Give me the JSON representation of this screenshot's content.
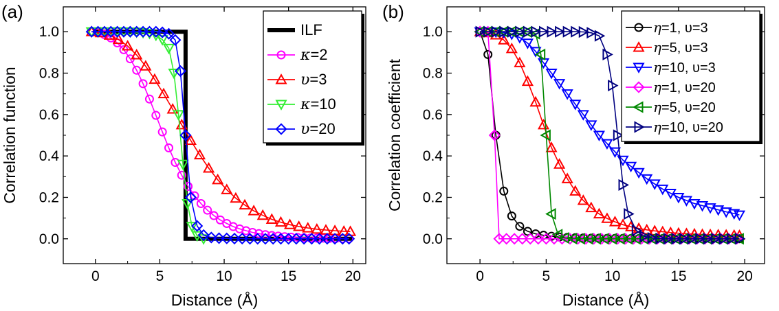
{
  "chart_data": [
    {
      "type": "line",
      "panel_label": "(a)",
      "xlabel": "Distance (Å)",
      "ylabel": "Correlation function",
      "xlim": [
        -2.5,
        21
      ],
      "ylim": [
        -0.12,
        1.12
      ],
      "xticks": [
        0,
        5,
        10,
        15,
        20
      ],
      "yticks": [
        0.0,
        0.2,
        0.4,
        0.6,
        0.8,
        1.0
      ],
      "xtick_labels": [
        "0",
        "5",
        "10",
        "15",
        "20"
      ],
      "ytick_labels": [
        "0.0",
        "0.2",
        "0.4",
        "0.6",
        "0.8",
        "1.0"
      ],
      "legend_position": "top-right",
      "series": [
        {
          "name": "ILF",
          "legend_prefix": "",
          "legend_suffix": "ILF",
          "color": "#000000",
          "marker": "none",
          "x": [
            -0.2,
            7.0,
            7.0,
            20.0
          ],
          "y": [
            1.0,
            1.0,
            0.0,
            0.0
          ]
        },
        {
          "name": "κ=2",
          "legend_prefix": "κ",
          "legend_suffix": "=2",
          "color": "#ff00ff",
          "marker": "circle",
          "x": [
            -0.3,
            0.2,
            0.7,
            1.2,
            1.7,
            2.2,
            2.7,
            3.2,
            3.7,
            4.2,
            4.7,
            5.2,
            5.7,
            6.2,
            6.7,
            7.2,
            7.7,
            8.2,
            8.7,
            9.2,
            9.7,
            10.2,
            10.7,
            11.2,
            11.7,
            12.2,
            12.7,
            13.2,
            13.7,
            14.2,
            14.7,
            15.2,
            15.7,
            16.2,
            16.7,
            17.2,
            17.7,
            18.2,
            18.7,
            19.2,
            19.7
          ],
          "y": [
            1.0,
            0.996,
            0.986,
            0.97,
            0.946,
            0.913,
            0.869,
            0.814,
            0.749,
            0.675,
            0.596,
            0.516,
            0.439,
            0.369,
            0.307,
            0.253,
            0.208,
            0.17,
            0.138,
            0.112,
            0.091,
            0.074,
            0.059,
            0.048,
            0.039,
            0.031,
            0.025,
            0.02,
            0.016,
            0.013,
            0.01,
            0.008,
            0.007,
            0.005,
            0.004,
            0.003,
            0.003,
            0.002,
            0.002,
            0.001,
            0.001
          ]
        },
        {
          "name": "υ=3",
          "legend_prefix": "υ",
          "legend_suffix": "=3",
          "color": "#ff0000",
          "marker": "triangle-up",
          "x": [
            -0.3,
            0.4,
            1.1,
            1.8,
            2.5,
            3.2,
            3.9,
            4.6,
            5.3,
            6.0,
            6.7,
            7.4,
            8.1,
            8.8,
            9.5,
            10.2,
            10.9,
            11.6,
            12.3,
            13.0,
            13.7,
            14.4,
            15.1,
            15.8,
            16.5,
            17.2,
            17.9,
            18.6,
            19.3,
            19.8
          ],
          "y": [
            1.0,
            0.995,
            0.983,
            0.962,
            0.931,
            0.888,
            0.834,
            0.77,
            0.7,
            0.626,
            0.55,
            0.475,
            0.405,
            0.341,
            0.285,
            0.237,
            0.196,
            0.163,
            0.135,
            0.113,
            0.094,
            0.08,
            0.068,
            0.059,
            0.052,
            0.046,
            0.042,
            0.039,
            0.036,
            0.035
          ]
        },
        {
          "name": "κ=10",
          "legend_prefix": "κ",
          "legend_suffix": "=10",
          "color": "#33ee33",
          "marker": "triangle-down",
          "x": [
            -0.3,
            0.2,
            0.7,
            1.2,
            1.7,
            2.2,
            2.7,
            3.2,
            3.7,
            4.2,
            4.7,
            5.2,
            5.7,
            6.1,
            6.45,
            6.8,
            7.15,
            7.5,
            7.9,
            8.4
          ],
          "y": [
            1.0,
            1.0,
            1.0,
            1.0,
            1.0,
            1.0,
            0.999,
            0.998,
            0.996,
            0.992,
            0.983,
            0.962,
            0.92,
            0.8,
            0.6,
            0.36,
            0.17,
            0.06,
            0.015,
            0.0
          ]
        },
        {
          "name": "υ=20",
          "legend_prefix": "υ",
          "legend_suffix": "=20",
          "color": "#0000ff",
          "marker": "diamond",
          "x": [
            -0.3,
            0.2,
            0.7,
            1.2,
            1.7,
            2.2,
            2.7,
            3.2,
            3.7,
            4.2,
            4.7,
            5.2,
            5.7,
            6.2,
            6.6,
            7.0,
            7.4,
            7.9,
            8.4,
            9.0,
            9.6,
            10.2,
            10.8,
            11.4,
            12.0,
            12.6,
            13.2,
            13.8,
            14.4,
            15.0,
            15.6,
            16.2,
            16.8,
            17.4,
            18.0,
            18.6,
            19.2,
            19.7
          ],
          "y": [
            1.0,
            1.0,
            1.0,
            1.0,
            1.0,
            1.0,
            1.0,
            1.0,
            1.0,
            1.0,
            1.0,
            0.997,
            0.99,
            0.96,
            0.81,
            0.5,
            0.2,
            0.062,
            0.018,
            0.006,
            0.003,
            0.002,
            0.001,
            0.001,
            0.0,
            0.0,
            0.0,
            0.0,
            0.0,
            0.0,
            0.0,
            0.0,
            0.0,
            0.0,
            0.0,
            0.0,
            0.0,
            0.0
          ]
        }
      ]
    },
    {
      "type": "line",
      "panel_label": "(b)",
      "xlabel": "Distance (Å)",
      "ylabel": "Correlation coefficient",
      "xlim": [
        -2.5,
        21.5
      ],
      "ylim": [
        -0.12,
        1.12
      ],
      "xticks": [
        0,
        5,
        10,
        15,
        20
      ],
      "yticks": [
        0.0,
        0.2,
        0.4,
        0.6,
        0.8,
        1.0
      ],
      "xtick_labels": [
        "0",
        "5",
        "10",
        "15",
        "20"
      ],
      "ytick_labels": [
        "0.0",
        "0.2",
        "0.4",
        "0.6",
        "0.8",
        "1.0"
      ],
      "legend_position": "top-right",
      "series": [
        {
          "name": "η=1, υ=3",
          "legend_prefix": "η",
          "legend_suffix": "=1,  υ=3",
          "color": "#000000",
          "marker": "circle",
          "x": [
            0.0,
            0.6,
            1.2,
            1.8,
            2.4,
            3.0,
            3.6,
            4.2,
            4.8,
            5.4,
            6.0,
            6.6,
            7.2,
            7.8,
            8.4,
            9.0,
            9.6,
            10.2,
            10.8,
            11.4,
            12.0,
            12.6,
            13.2,
            13.8,
            14.4,
            15.0,
            15.6,
            16.2,
            16.8,
            17.4,
            18.0,
            18.6,
            19.2,
            19.6
          ],
          "y": [
            1.0,
            0.89,
            0.5,
            0.23,
            0.11,
            0.06,
            0.036,
            0.024,
            0.017,
            0.012,
            0.009,
            0.007,
            0.005,
            0.004,
            0.003,
            0.003,
            0.002,
            0.002,
            0.002,
            0.001,
            0.001,
            0.001,
            0.001,
            0.001,
            0.001,
            0.0,
            0.0,
            0.0,
            0.0,
            0.0,
            0.0,
            0.0,
            0.0,
            0.0
          ]
        },
        {
          "name": "η=5, υ=3",
          "legend_prefix": "η",
          "legend_suffix": "=5,  υ=3",
          "color": "#ff0000",
          "marker": "triangle-up",
          "x": [
            0.0,
            0.6,
            1.2,
            1.8,
            2.4,
            3.0,
            3.6,
            4.2,
            4.8,
            5.4,
            6.0,
            6.6,
            7.2,
            7.8,
            8.4,
            9.0,
            9.6,
            10.2,
            10.8,
            11.4,
            12.0,
            12.6,
            13.2,
            13.8,
            14.4,
            15.0,
            15.6,
            16.2,
            16.8,
            17.4,
            18.0,
            18.6,
            19.2,
            19.6
          ],
          "y": [
            1.0,
            0.995,
            0.984,
            0.96,
            0.918,
            0.85,
            0.76,
            0.66,
            0.55,
            0.44,
            0.36,
            0.29,
            0.23,
            0.185,
            0.15,
            0.12,
            0.098,
            0.082,
            0.068,
            0.058,
            0.05,
            0.043,
            0.038,
            0.034,
            0.03,
            0.027,
            0.025,
            0.023,
            0.021,
            0.02,
            0.019,
            0.018,
            0.017,
            0.016
          ]
        },
        {
          "name": "η=10, υ=3",
          "legend_prefix": "η",
          "legend_suffix": "=10, υ=3",
          "color": "#0000ff",
          "marker": "triangle-down",
          "x": [
            0.0,
            0.6,
            1.2,
            1.8,
            2.4,
            3.0,
            3.6,
            4.2,
            4.8,
            5.4,
            6.0,
            6.6,
            7.2,
            7.8,
            8.4,
            9.0,
            9.6,
            10.2,
            10.8,
            11.4,
            12.0,
            12.6,
            13.2,
            13.8,
            14.4,
            15.0,
            15.6,
            16.2,
            16.8,
            17.4,
            18.0,
            18.6,
            19.2,
            19.6
          ],
          "y": [
            1.0,
            1.0,
            0.999,
            0.996,
            0.988,
            0.972,
            0.945,
            0.905,
            0.85,
            0.8,
            0.75,
            0.7,
            0.65,
            0.6,
            0.55,
            0.5,
            0.46,
            0.42,
            0.38,
            0.35,
            0.32,
            0.29,
            0.265,
            0.24,
            0.22,
            0.2,
            0.185,
            0.17,
            0.16,
            0.15,
            0.14,
            0.13,
            0.122,
            0.115
          ]
        },
        {
          "name": "η=1, υ=20",
          "legend_prefix": "η",
          "legend_suffix": "=1,  υ=20",
          "color": "#ff00ff",
          "marker": "diamond",
          "x": [
            0.0,
            0.6,
            1.1,
            1.45,
            2.0,
            2.6,
            3.2,
            3.8,
            4.4,
            5.0,
            5.6,
            6.2,
            6.8,
            7.4,
            8.0,
            8.6,
            9.2,
            9.8,
            10.4,
            11.0,
            11.6,
            12.2,
            12.8,
            13.4,
            14.0,
            14.6,
            15.2,
            15.8,
            16.4,
            17.0,
            17.6,
            18.2,
            18.8,
            19.4
          ],
          "y": [
            1.0,
            1.0,
            0.5,
            0.0,
            0.0,
            0.0,
            0.0,
            0.0,
            0.0,
            0.0,
            0.0,
            0.0,
            0.0,
            0.0,
            0.0,
            0.0,
            0.0,
            0.0,
            0.0,
            0.0,
            0.0,
            0.0,
            0.0,
            0.0,
            0.0,
            0.0,
            0.0,
            0.0,
            0.0,
            0.0,
            0.0,
            0.0,
            0.0,
            0.0
          ]
        },
        {
          "name": "η=5, υ=20",
          "legend_prefix": "η",
          "legend_suffix": "=5,  υ=20",
          "color": "#008800",
          "marker": "triangle-left",
          "x": [
            0.0,
            0.6,
            1.2,
            1.8,
            2.4,
            3.0,
            3.6,
            4.2,
            4.6,
            5.0,
            5.4,
            5.9,
            6.4,
            7.0,
            7.6,
            8.2,
            8.8,
            9.4,
            10.0,
            10.6,
            11.2,
            11.8,
            12.4,
            13.0,
            13.6,
            14.2,
            14.8,
            15.4,
            16.0,
            16.6,
            17.2,
            17.8,
            18.4,
            19.0,
            19.6
          ],
          "y": [
            1.0,
            1.0,
            1.0,
            1.0,
            1.0,
            1.0,
            0.999,
            0.99,
            0.89,
            0.5,
            0.12,
            0.02,
            0.004,
            0.001,
            0.0,
            0.0,
            0.0,
            0.0,
            0.0,
            0.0,
            0.0,
            0.0,
            0.0,
            0.0,
            0.0,
            0.0,
            0.0,
            0.0,
            0.0,
            0.0,
            0.0,
            0.0,
            0.0,
            0.0,
            0.0
          ]
        },
        {
          "name": "η=10, υ=20",
          "legend_prefix": "η",
          "legend_suffix": "=10, υ=20",
          "color": "#000080",
          "marker": "triangle-right",
          "x": [
            0.0,
            0.6,
            1.2,
            1.8,
            2.4,
            3.0,
            3.6,
            4.2,
            4.8,
            5.4,
            6.0,
            6.6,
            7.2,
            7.8,
            8.4,
            9.0,
            9.6,
            10.0,
            10.4,
            10.8,
            11.2,
            11.8,
            12.4,
            13.0,
            13.6,
            14.2,
            14.8,
            15.4,
            16.0,
            16.6,
            17.2,
            17.8,
            18.4,
            19.0,
            19.6
          ],
          "y": [
            1.0,
            1.0,
            1.0,
            1.0,
            1.0,
            1.0,
            1.0,
            1.0,
            1.0,
            1.0,
            1.0,
            1.0,
            1.0,
            0.999,
            0.995,
            0.98,
            0.89,
            0.74,
            0.5,
            0.26,
            0.12,
            0.04,
            0.012,
            0.004,
            0.001,
            0.0,
            0.0,
            0.0,
            0.0,
            0.0,
            0.0,
            0.0,
            0.0,
            0.0,
            0.0
          ]
        }
      ]
    }
  ]
}
